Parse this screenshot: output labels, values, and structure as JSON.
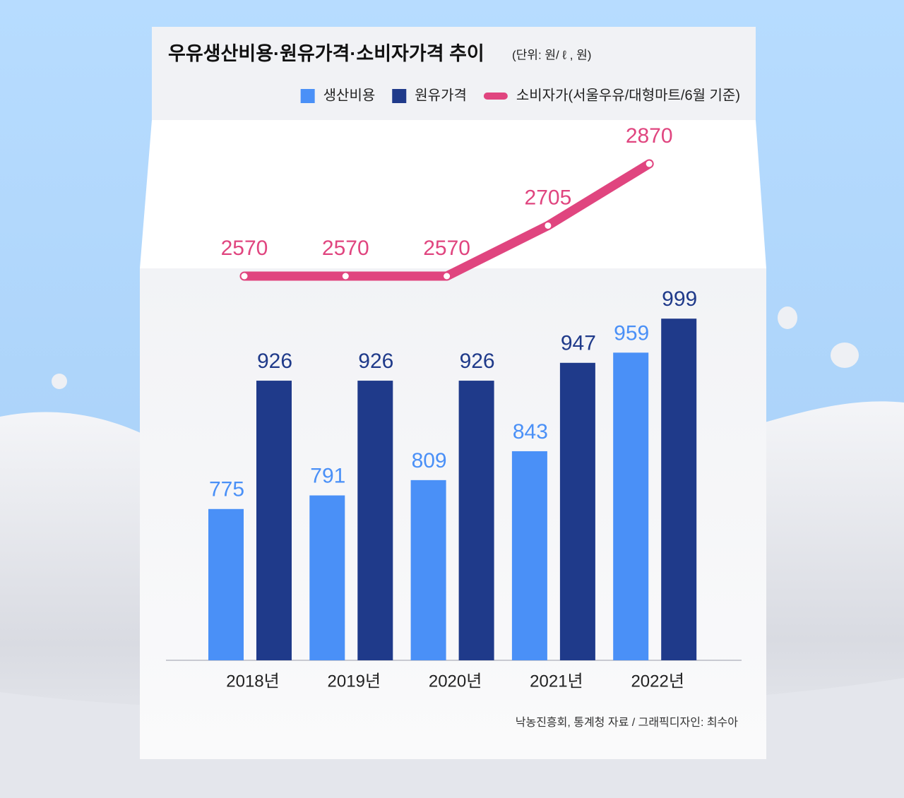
{
  "chart_data": {
    "type": "bar",
    "title": "우유생산비용·원유가격·소비자가격 추이",
    "subtitle": "(단위: 원/ ℓ , 원)",
    "source": "낙농진흥회, 통계청 자료 / 그래픽디자인: 최수아",
    "categories": [
      "2018년",
      "2019년",
      "2020년",
      "2021년",
      "2022년"
    ],
    "series": [
      {
        "name": "생산비용",
        "color": "#4a90f7",
        "values": [
          775,
          791,
          809,
          843,
          959
        ]
      },
      {
        "name": "원유가격",
        "color": "#1f3a8a",
        "values": [
          926,
          926,
          926,
          947,
          999
        ]
      },
      {
        "name": "소비자가(서울우유/대형마트/6월 기준)",
        "color": "#e0457f",
        "type": "line",
        "axis": "y2",
        "values": [
          2570,
          2570,
          2570,
          2705,
          2870
        ]
      }
    ],
    "ylim": [
      597,
      1000
    ],
    "y2lim": [
      2570,
      2870
    ]
  }
}
